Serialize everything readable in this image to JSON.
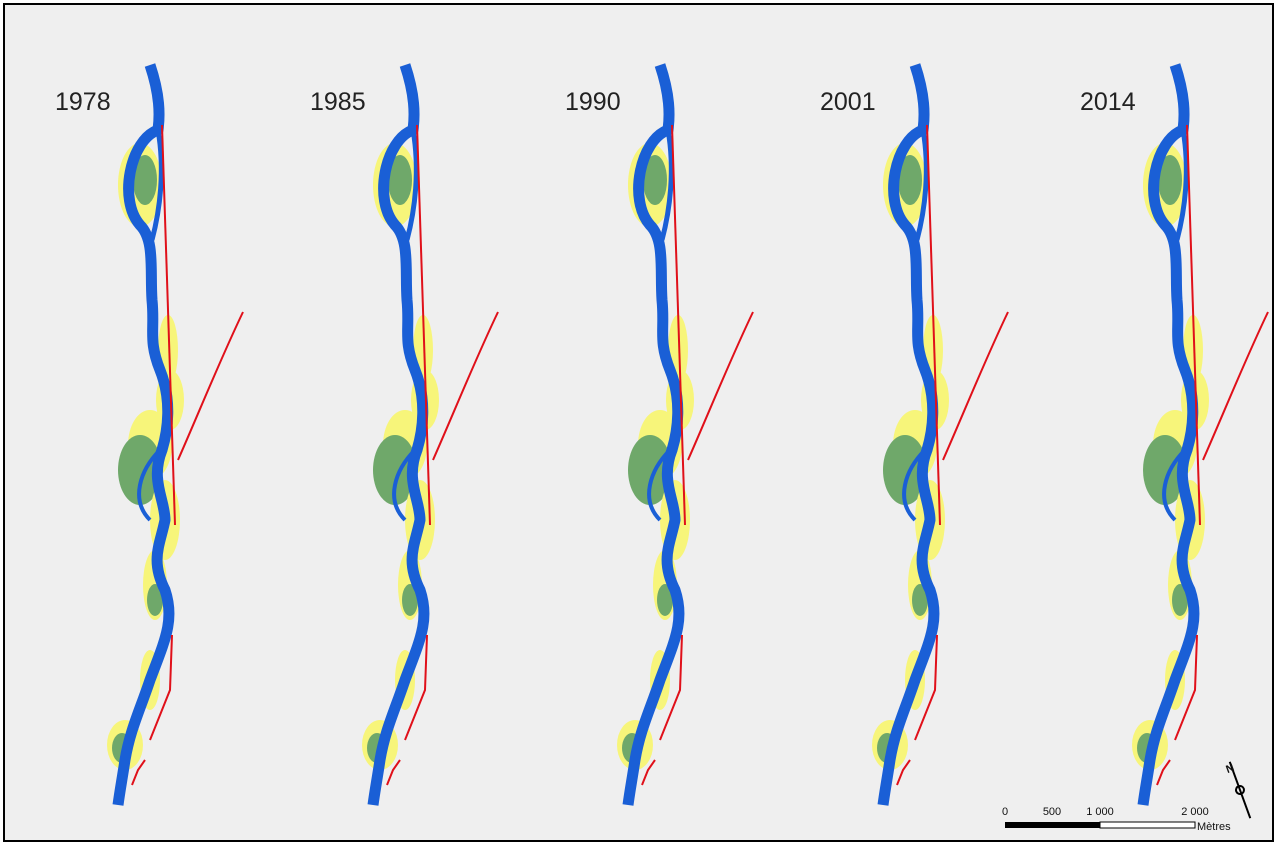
{
  "panels": [
    {
      "year": "1978"
    },
    {
      "year": "1985"
    },
    {
      "year": "1990"
    },
    {
      "year": "2001"
    },
    {
      "year": "2014"
    }
  ],
  "scale_bar": {
    "ticks": [
      "0",
      "500",
      "1 000",
      "2 000"
    ],
    "unit": "Mètres"
  },
  "north_label": "N"
}
